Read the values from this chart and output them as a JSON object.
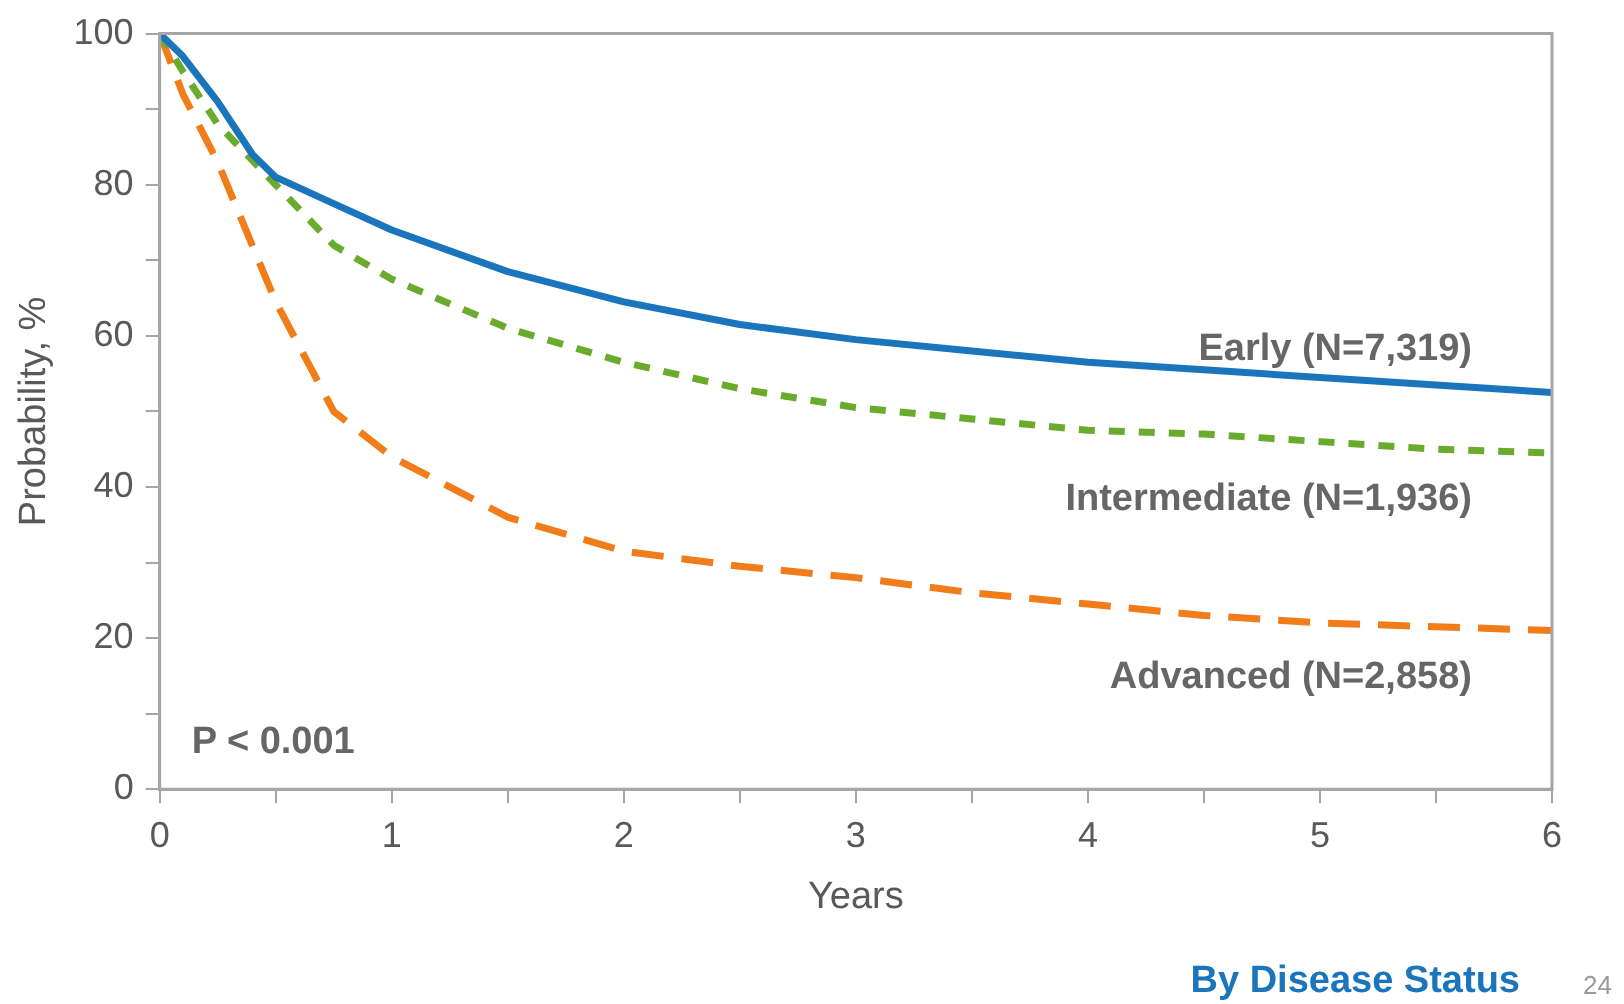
{
  "chart_data": {
    "type": "line",
    "subtitle": "By Disease Status",
    "xlabel": "Years",
    "ylabel": "Probability, %",
    "annotations": [
      "P < 0.001",
      "24"
    ],
    "xlim": [
      0,
      6
    ],
    "xticks": [
      0,
      {
        "value": 0.5,
        "label": null
      },
      1,
      {
        "value": 1.5,
        "label": null
      },
      2,
      {
        "value": 2.5,
        "label": null
      },
      3,
      {
        "value": 3.5,
        "label": null
      },
      4,
      {
        "value": 4.5,
        "label": null
      },
      5,
      {
        "value": 5.5,
        "label": null
      },
      6
    ],
    "ylim": [
      0,
      100
    ],
    "yticks": [
      0,
      {
        "value": 10,
        "label": null
      },
      20,
      {
        "value": 30,
        "label": null
      },
      40,
      {
        "value": 50,
        "label": null
      },
      60,
      {
        "value": 70,
        "label": null
      },
      80,
      {
        "value": 90,
        "label": null
      },
      100
    ],
    "grid": false,
    "legend": false,
    "marker": "none",
    "series": [
      {
        "name": "Early (N=7,319)",
        "color": "#1a75bc",
        "line_style": "solid",
        "x": [
          0,
          0.1,
          0.25,
          0.4,
          0.5,
          0.75,
          1,
          1.5,
          2,
          2.5,
          3,
          3.5,
          4,
          4.5,
          5,
          5.5,
          6
        ],
        "values": [
          100,
          97,
          91,
          84,
          81,
          77.5,
          74,
          68.5,
          64.5,
          61.5,
          59.5,
          58,
          56.5,
          55.5,
          54.5,
          53.5,
          52.5
        ]
      },
      {
        "name": "Intermediate (N=1,936)",
        "color": "#6aab2e",
        "line_style": "dotted",
        "x": [
          0,
          0.1,
          0.25,
          0.5,
          0.75,
          1,
          1.5,
          2,
          2.5,
          3,
          3.5,
          4,
          4.5,
          5,
          5.5,
          6
        ],
        "values": [
          100,
          95,
          88,
          80,
          72,
          67.5,
          61,
          56.5,
          53,
          50.5,
          49,
          47.5,
          47,
          46,
          45,
          44.5
        ]
      },
      {
        "name": "Advanced (N=2,858)",
        "color": "#f07c1a",
        "line_style": "dashed",
        "x": [
          0,
          0.1,
          0.25,
          0.5,
          0.75,
          1,
          1.5,
          2,
          2.5,
          3,
          3.5,
          4,
          4.5,
          5,
          5.5,
          6
        ],
        "values": [
          100,
          92,
          83,
          64.5,
          50,
          44,
          36,
          31.5,
          29.5,
          28,
          26,
          24.5,
          23,
          22,
          21.5,
          21
        ]
      }
    ]
  }
}
